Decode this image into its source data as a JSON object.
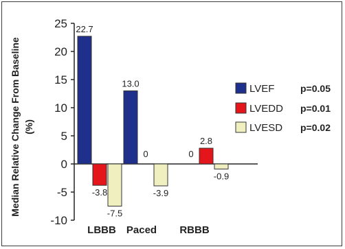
{
  "chart_data": {
    "type": "bar",
    "title": "",
    "ylabel": "Median Relative Change From Baseline (%)",
    "ylabel_line1": "Median Relative Change From Baseline",
    "ylabel_line2": "(%)",
    "xlabel": "",
    "ylim": [
      -10,
      25
    ],
    "yticks": [
      25,
      20,
      15,
      10,
      5,
      0,
      -5,
      -10
    ],
    "categories": [
      "LBBB",
      "Paced",
      "RBBB"
    ],
    "series": [
      {
        "name": "LVEF",
        "values": [
          22.7,
          13.0,
          0
        ],
        "labels": [
          "22.7",
          "13.0",
          "0"
        ],
        "color": "#1f2f8c",
        "p": "p=0.05"
      },
      {
        "name": "LVEDD",
        "values": [
          -3.8,
          0,
          2.8
        ],
        "labels": [
          "-3.8",
          "0",
          "2.8"
        ],
        "color": "#e4161b",
        "p": "p=0.01"
      },
      {
        "name": "LVESD",
        "values": [
          -7.5,
          -3.9,
          -0.9
        ],
        "labels": [
          "-7.5",
          "-3.9",
          "-0.9"
        ],
        "color": "#f0efc0",
        "p": "p=0.02"
      }
    ],
    "legend_position": "right",
    "grid": false
  }
}
